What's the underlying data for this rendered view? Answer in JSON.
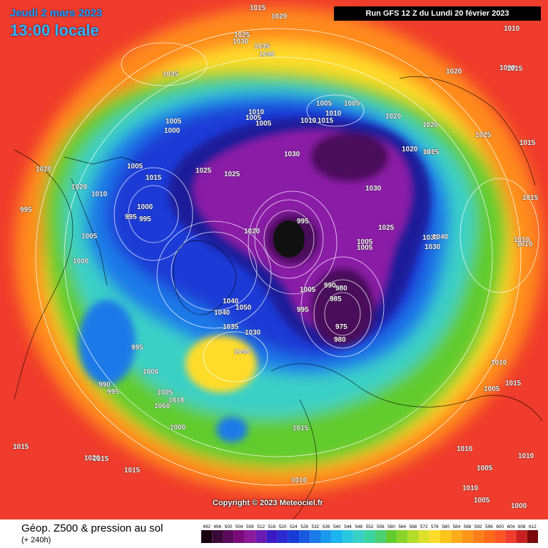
{
  "header": {
    "date": "Jeudi 2 mars 2023",
    "time": "13:00 locale",
    "run": "Run GFS 12 Z du Lundi 20 février 2023"
  },
  "map": {
    "copyright": "Copyright © 2023 Meteociel.fr",
    "colors": {
      "outer": "#f03c2c",
      "orange": "#ff8a1a",
      "yellow": "#ffdc2a",
      "green": "#62cc2e",
      "cyan": "#3ad0c6",
      "blue": "#1a7ae8",
      "deep_blue": "#1a3ad6",
      "navy": "#1a1c9a",
      "purple": "#8a1aa6",
      "dark_purple": "#4a0a5a",
      "black_low": "#101010"
    },
    "isobar_labels": [
      "1015",
      "1020",
      "1025",
      "1030",
      "1035",
      "1040",
      "1035",
      "1020",
      "1010",
      "1020",
      "1015",
      "1005",
      "1000",
      "1005",
      "1010",
      "1005",
      "1010",
      "1015",
      "1005",
      "1005",
      "1010",
      "1020",
      "1020",
      "1015",
      "1025",
      "1015",
      "1020",
      "1005",
      "1015",
      "1025",
      "1030",
      "1025",
      "1030",
      "1020",
      "1015",
      "1020",
      "1010",
      "995",
      "1000",
      "995",
      "995",
      "1005",
      "1000",
      "995",
      "1020",
      "1025",
      "1030",
      "1005",
      "1005",
      "1040",
      "1030",
      "1015",
      "1010",
      "1010",
      "1005",
      "990",
      "980",
      "985",
      "995",
      "975",
      "980",
      "1050",
      "1040",
      "1035",
      "1030",
      "1040",
      "1040",
      "995",
      "1000",
      "990",
      "995",
      "1005",
      "1018",
      "1060",
      "1000",
      "1015",
      "1015",
      "1015",
      "1015",
      "1010",
      "1020",
      "1010",
      "1010",
      "1005",
      "1010",
      "1005",
      "1000",
      "1005",
      "1010",
      "1015"
    ]
  },
  "footer": {
    "title": "Géop. Z500 & pression au sol",
    "subtitle": "(+ 240h)",
    "scale_values": [
      "492",
      "496",
      "500",
      "504",
      "508",
      "512",
      "516",
      "520",
      "524",
      "528",
      "532",
      "536",
      "540",
      "544",
      "548",
      "552",
      "556",
      "560",
      "564",
      "568",
      "572",
      "576",
      "580",
      "584",
      "588",
      "592",
      "596",
      "600",
      "604",
      "608",
      "612"
    ],
    "scale_colors": [
      "#1a0010",
      "#3a0a3a",
      "#5a0a5a",
      "#7a0a7a",
      "#8a1a9a",
      "#6a1ab0",
      "#3a1ac0",
      "#2a2ad0",
      "#1a3ad6",
      "#1a5ae0",
      "#1a7ae8",
      "#1a9aee",
      "#1ab4f0",
      "#2ac8e0",
      "#3ad0c6",
      "#3ad4a0",
      "#4ad070",
      "#62cc2e",
      "#8ad42a",
      "#b4dc2a",
      "#dce02a",
      "#ffdc2a",
      "#ffc41a",
      "#ffac1a",
      "#ff961a",
      "#ff801a",
      "#ff6a1a",
      "#ff5424",
      "#f03c2c",
      "#c82020",
      "#7a0a0a"
    ]
  }
}
